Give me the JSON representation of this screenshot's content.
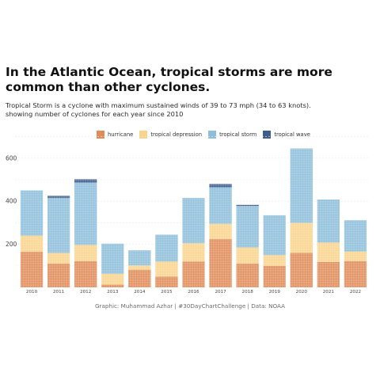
{
  "title": "In the Atlantic Ocean, tropical storms are more common than other cyclones.",
  "subtitle_line1": "Tropical Storm is a cyclone with maximum sustained winds of 39 to 73 mph (34 to 63 knots).",
  "subtitle_line2": "showing number of cyclones for each year since 2010",
  "caption": "Graphic: Muhammad Azhar | #30DayChartChallenge | Data: NOAA",
  "colors": {
    "hurricane": "#e08c5a",
    "tropical depression": "#f9d48c",
    "tropical storm": "#8ebfda",
    "tropical wave": "#3e5c8c"
  },
  "chart_data": {
    "type": "bar",
    "stacked": true,
    "categories": [
      "2010",
      "2011",
      "2012",
      "2013",
      "2014",
      "2015",
      "2016",
      "2017",
      "2018",
      "2019",
      "2020",
      "2021",
      "2022"
    ],
    "series": [
      {
        "name": "hurricane",
        "values": [
          165,
          110,
          122,
          13,
          82,
          50,
          120,
          225,
          110,
          100,
          160,
          118,
          122
        ]
      },
      {
        "name": "tropical depression",
        "values": [
          75,
          50,
          75,
          50,
          20,
          70,
          85,
          70,
          75,
          50,
          140,
          90,
          45
        ]
      },
      {
        "name": "tropical storm",
        "values": [
          210,
          255,
          290,
          140,
          70,
          125,
          210,
          170,
          193,
          185,
          345,
          200,
          145
        ]
      },
      {
        "name": "tropical wave",
        "values": [
          0,
          10,
          15,
          0,
          0,
          0,
          0,
          15,
          5,
          0,
          0,
          0,
          0
        ]
      }
    ],
    "ylim": [
      0,
      700
    ],
    "yticks": [
      200,
      400,
      600
    ],
    "grid": true,
    "legend_position": "top",
    "xlabel": "",
    "ylabel": ""
  }
}
